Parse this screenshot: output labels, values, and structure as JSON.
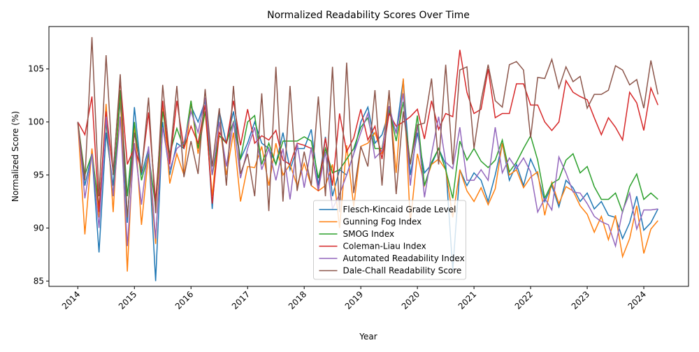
{
  "chart_data": {
    "type": "line",
    "title": "Normalized Readability Scores Over Time",
    "xlabel": "Year",
    "ylabel": "Normalized Score (%)",
    "x": [
      2014,
      2014.125,
      2014.25,
      2014.375,
      2014.5,
      2014.625,
      2014.75,
      2014.875,
      2015,
      2015.125,
      2015.25,
      2015.375,
      2015.5,
      2015.625,
      2015.75,
      2015.875,
      2016,
      2016.125,
      2016.25,
      2016.375,
      2016.5,
      2016.625,
      2016.75,
      2016.875,
      2017,
      2017.125,
      2017.25,
      2017.375,
      2017.5,
      2017.625,
      2017.75,
      2017.875,
      2018,
      2018.125,
      2018.25,
      2018.375,
      2018.5,
      2018.625,
      2018.75,
      2018.875,
      2019,
      2019.125,
      2019.25,
      2019.375,
      2019.5,
      2019.625,
      2019.75,
      2019.875,
      2020,
      2020.125,
      2020.25,
      2020.375,
      2020.5,
      2020.625,
      2020.75,
      2020.875,
      2021,
      2021.125,
      2021.25,
      2021.375,
      2021.5,
      2021.625,
      2021.75,
      2021.875,
      2022,
      2022.125,
      2022.25,
      2022.375,
      2022.5,
      2022.625,
      2022.75,
      2022.875,
      2023,
      2023.125,
      2023.25,
      2023.375,
      2023.5,
      2023.625,
      2023.75,
      2023.875,
      2024,
      2024.125,
      2024.25
    ],
    "series": [
      {
        "name": "Flesch-Kincaid Grade Level",
        "color": "#1f77b4",
        "values": [
          100,
          94,
          97,
          87.7,
          99,
          94,
          102,
          90.5,
          101.4,
          95,
          97.5,
          85,
          100,
          95,
          98,
          97.5,
          101.5,
          100,
          102,
          91.8,
          101,
          98,
          101,
          96.5,
          98,
          100,
          98,
          97.5,
          96,
          99,
          95.5,
          97.5,
          97.5,
          99.3,
          94,
          98.6,
          93,
          95.5,
          95,
          97,
          100,
          101.4,
          98,
          98.8,
          101,
          99,
          104,
          95,
          99,
          95.2,
          96,
          97.5,
          96,
          86,
          95.5,
          94,
          95.2,
          94.5,
          92.5,
          95,
          98,
          94.5,
          96,
          94,
          96.5,
          95,
          92.5,
          94,
          92,
          94.5,
          93.8,
          92.5,
          93.3,
          91.8,
          92.5,
          91.2,
          91,
          89,
          90.5,
          93,
          89.8,
          90.5,
          91.8
        ]
      },
      {
        "name": "Gunning Fog Index",
        "color": "#ff7f0e",
        "values": [
          100,
          89.4,
          97.5,
          91,
          101.7,
          91.5,
          103,
          85.9,
          100,
          90.3,
          97,
          88.5,
          102,
          94.2,
          97,
          95,
          102,
          97,
          101,
          93,
          100,
          95,
          99,
          92.5,
          95.8,
          95.7,
          97.7,
          94,
          98,
          95,
          96,
          94,
          96.1,
          94,
          93.5,
          94,
          96,
          90,
          97.8,
          92,
          97.7,
          98,
          99,
          97,
          102.8,
          95.2,
          104.1,
          90.5,
          97,
          94,
          96,
          96.5,
          95.5,
          91,
          95.5,
          93.5,
          92.5,
          93.8,
          92.2,
          93.7,
          98,
          95,
          95.5,
          93.8,
          94.8,
          95.3,
          91.2,
          94.3,
          92.3,
          93.9,
          93.5,
          92.1,
          91.3,
          89.6,
          91.1,
          88.9,
          91.2,
          87.3,
          89,
          92.1,
          87.6,
          89.9,
          90.7
        ]
      },
      {
        "name": "SMOG Index",
        "color": "#2ca02c",
        "values": [
          100,
          95,
          97,
          92,
          100,
          93,
          103,
          93,
          100,
          94.5,
          97,
          92,
          101,
          97,
          99.4,
          97.5,
          102,
          97.5,
          101,
          95,
          98.7,
          98,
          100,
          96.5,
          100,
          100.6,
          96,
          98,
          96,
          98.2,
          98.2,
          98.2,
          98.6,
          98.2,
          94.7,
          97.5,
          95.2,
          95.5,
          96.5,
          97.5,
          99.5,
          100.4,
          97.5,
          97.5,
          101.3,
          98.2,
          101.9,
          96,
          100.6,
          94,
          96.2,
          97.5,
          95.5,
          92.8,
          98.2,
          96.4,
          97.5,
          96.3,
          95.7,
          96.4,
          98.3,
          95.3,
          96.2,
          97.5,
          98.7,
          96.4,
          92.8,
          94.2,
          94.6,
          96.4,
          97,
          95.2,
          95.8,
          93.9,
          92.7,
          92.7,
          93.3,
          91.5,
          93.9,
          95.1,
          92.7,
          93.3,
          92.7
        ]
      },
      {
        "name": "Coleman-Liau Index",
        "color": "#d62728",
        "values": [
          100,
          98.8,
          102.4,
          91.5,
          101,
          95.3,
          104,
          96,
          97.6,
          95.5,
          100.9,
          92.5,
          102,
          96,
          102,
          97.5,
          99.6,
          98,
          101.6,
          92.3,
          99,
          98,
          102,
          97.8,
          101.2,
          98,
          98.7,
          98.3,
          99.2,
          96.4,
          96,
          98,
          97.8,
          97.5,
          93.5,
          98.5,
          94,
          100.8,
          97.2,
          98.5,
          101.2,
          98.3,
          99.6,
          96.5,
          100.8,
          99.6,
          100,
          100.5,
          101.2,
          98.4,
          102,
          99.3,
          100.8,
          100.5,
          106.8,
          102.8,
          100.8,
          101.2,
          105,
          100.4,
          100.8,
          100.8,
          103.6,
          103.6,
          101.6,
          101.6,
          100,
          99.2,
          100,
          103.9,
          102.8,
          102.4,
          102.1,
          100.4,
          98.8,
          100.4,
          99.5,
          98.3,
          102.8,
          101.8,
          99.2,
          103.2,
          101.6
        ]
      },
      {
        "name": "Automated Readability Index",
        "color": "#9467bd",
        "values": [
          100,
          92.8,
          97,
          90,
          100.5,
          93,
          100.5,
          88.3,
          98,
          92.2,
          97.7,
          89,
          99.5,
          95.5,
          97.5,
          98,
          101,
          99,
          102.3,
          95,
          100,
          95.8,
          100,
          94.7,
          97.5,
          99.5,
          95.5,
          97.5,
          94.5,
          97.5,
          92.7,
          98,
          93.8,
          97.6,
          93.6,
          97.2,
          91.8,
          93.2,
          95,
          97,
          99,
          100.8,
          96.6,
          97.3,
          101.5,
          98.9,
          102.7,
          94,
          99.8,
          92.9,
          97,
          100.5,
          96.2,
          95.6,
          99.5,
          94.5,
          94.5,
          95.5,
          94.5,
          99.5,
          95.2,
          96.6,
          95.6,
          96.6,
          95.3,
          91.5,
          92.8,
          91.7,
          96.7,
          95.2,
          93.4,
          93.3,
          92.3,
          91.1,
          90.6,
          90.3,
          88.3,
          91.6,
          93.3,
          89.9,
          91.7,
          91.7,
          91.8
        ]
      },
      {
        "name": "Dale-Chall Readability Score",
        "color": "#8c564b",
        "values": [
          100,
          94.5,
          108,
          93,
          106.3,
          95,
          104.5,
          91,
          99,
          95.2,
          102.3,
          91.4,
          103.5,
          96.5,
          103.4,
          94.8,
          98.2,
          95.1,
          103.1,
          95.8,
          101.3,
          94,
          103.4,
          95.1,
          97,
          93,
          102.7,
          91.6,
          105.2,
          92.5,
          103.4,
          93.5,
          97.2,
          94,
          102.4,
          93,
          105.2,
          91.5,
          105.6,
          93.3,
          97.7,
          95.8,
          103,
          94,
          103,
          93.2,
          101,
          96,
          99.7,
          99.9,
          104.1,
          96,
          105.4,
          96,
          104.9,
          105.2,
          97.5,
          102,
          105.4,
          102,
          101.4,
          105.4,
          105.7,
          104.9,
          98.5,
          104.2,
          104.1,
          105.9,
          103.2,
          105.2,
          103.8,
          104.3,
          101.3,
          102.6,
          102.6,
          103,
          105.3,
          104.9,
          103.5,
          104,
          101.3,
          105.8,
          102.6
        ]
      }
    ],
    "xlim": [
      2013.49,
      2024.79
    ],
    "xticks": [
      2014,
      2015,
      2016,
      2017,
      2018,
      2019,
      2020,
      2021,
      2022,
      2023,
      2024
    ],
    "ylim": [
      84.5,
      109
    ],
    "yticks": [
      85,
      90,
      95,
      100,
      105
    ],
    "legend": "lower center"
  }
}
